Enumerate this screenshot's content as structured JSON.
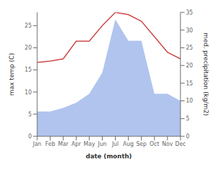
{
  "chart_data": {
    "type": "line",
    "categories": [
      "Jan",
      "Feb",
      "Mar",
      "Apr",
      "May",
      "Jun",
      "Jul",
      "Aug",
      "Sep",
      "Oct",
      "Nov",
      "Dec"
    ],
    "xlabel": "date (month)",
    "ylabel": "max temp (C)",
    "y2label": "med. precipitation (kg/m2)",
    "ylim": [
      0,
      28
    ],
    "yticks": [
      0,
      5,
      10,
      15,
      20,
      25
    ],
    "y2lim": [
      0,
      35
    ],
    "y2ticks": [
      0,
      5,
      10,
      15,
      20,
      25,
      30,
      35
    ],
    "grid": false,
    "series": [
      {
        "type": "line",
        "color": "#cc4444",
        "values": [
          16.7,
          17.0,
          17.5,
          21.5,
          21.5,
          25.0,
          28.0,
          27.5,
          26.0,
          22.5,
          19.0,
          17.5
        ]
      },
      {
        "type": "area",
        "axis": "y2",
        "color": "#b0c4ee",
        "values": [
          7.0,
          7.0,
          8.0,
          9.5,
          12.0,
          18.0,
          33.0,
          27.0,
          27.0,
          12.0,
          12.0,
          10.0
        ]
      }
    ]
  }
}
